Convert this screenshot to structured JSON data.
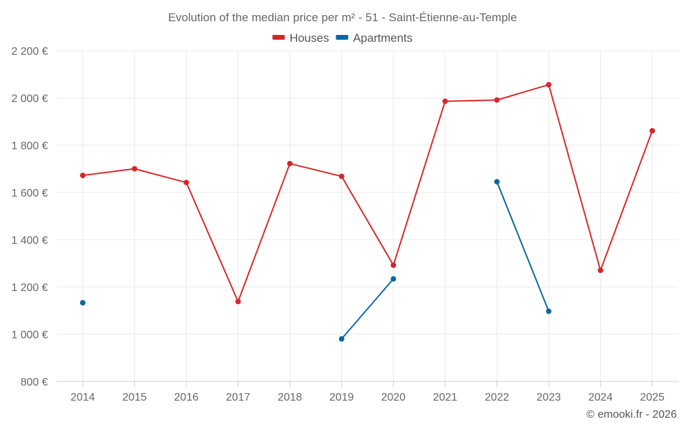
{
  "chart_data": {
    "type": "line",
    "title": "Evolution of the median price per m² - 51 - Saint-Étienne-au-Temple",
    "categories": [
      "2014",
      "2015",
      "2016",
      "2017",
      "2018",
      "2019",
      "2020",
      "2021",
      "2022",
      "2023",
      "2024",
      "2025"
    ],
    "series": [
      {
        "name": "Houses",
        "color": "#d62728",
        "values": [
          1672,
          1700,
          1642,
          1138,
          1722,
          1668,
          1292,
          1986,
          1991,
          2056,
          1270,
          1861
        ]
      },
      {
        "name": "Apartments",
        "color": "#07689f",
        "values": [
          1133,
          null,
          null,
          null,
          null,
          980,
          1234,
          null,
          1645,
          1097,
          null,
          null
        ]
      }
    ],
    "ylim": [
      800,
      2200
    ],
    "yticks": [
      800,
      1000,
      1200,
      1400,
      1600,
      1800,
      2000,
      2200
    ],
    "ytick_labels": [
      "800 €",
      "1 000 €",
      "1 200 €",
      "1 400 €",
      "1 600 €",
      "1 800 €",
      "2 000 €",
      "2 200 €"
    ],
    "xlabel": "",
    "ylabel": "",
    "grid": true,
    "legend_position": "top-center"
  },
  "credit": "© emooki.fr - 2026"
}
